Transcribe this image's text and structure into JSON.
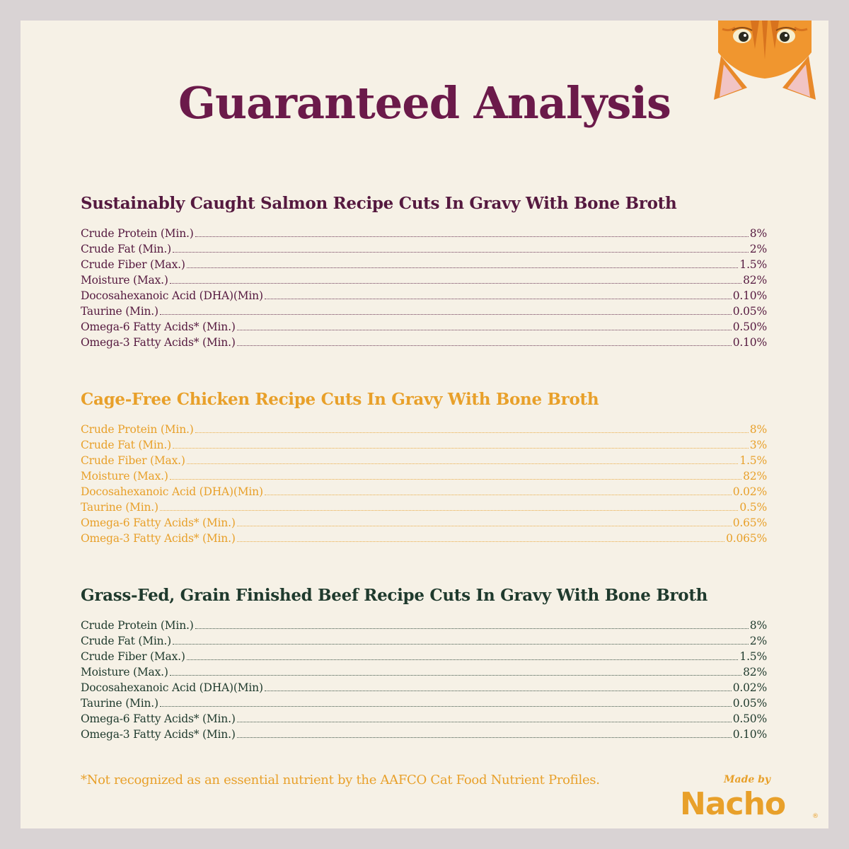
{
  "title": "Guaranteed Analysis",
  "colors": {
    "frame": "#d9d3d4",
    "card": "#f6f1e6",
    "title": "#6b1a4a",
    "salmon_section": "#55193f",
    "chicken_section": "#e8a02a",
    "beef_section": "#1f3a2d",
    "accent": "#e8a02a"
  },
  "sections": [
    {
      "title": "Sustainably Caught Salmon Recipe Cuts In Gravy With Bone Broth",
      "rows": [
        {
          "label": "Crude Protein (Min.)",
          "value": "8%"
        },
        {
          "label": "Crude Fat (Min.)",
          "value": "2%"
        },
        {
          "label": "Crude Fiber (Max.)",
          "value": "1.5%"
        },
        {
          "label": "Moisture (Max.)",
          "value": "82%"
        },
        {
          "label": "Docosahexanoic Acid (DHA)(Min)",
          "value": "0.10%"
        },
        {
          "label": "Taurine (Min.)",
          "value": "0.05%"
        },
        {
          "label": "Omega-6 Fatty Acids* (Min.)",
          "value": "0.50%"
        },
        {
          "label": "Omega-3 Fatty Acids* (Min.)",
          "value": "0.10%"
        }
      ]
    },
    {
      "title": "Cage-Free Chicken Recipe Cuts In Gravy With Bone Broth",
      "rows": [
        {
          "label": "Crude Protein (Min.)",
          "value": "8%"
        },
        {
          "label": "Crude Fat (Min.)",
          "value": "3%"
        },
        {
          "label": "Crude Fiber (Max.)",
          "value": "1.5%"
        },
        {
          "label": "Moisture (Max.)",
          "value": "82%"
        },
        {
          "label": "Docosahexanoic Acid (DHA)(Min)",
          "value": "0.02%"
        },
        {
          "label": "Taurine (Min.)",
          "value": "0.5%"
        },
        {
          "label": "Omega-6 Fatty Acids* (Min.)",
          "value": "0.65%"
        },
        {
          "label": "Omega-3 Fatty Acids* (Min.)",
          "value": "0.065%"
        }
      ]
    },
    {
      "title": "Grass-Fed, Grain Finished Beef Recipe Cuts In Gravy With Bone Broth",
      "rows": [
        {
          "label": "Crude Protein (Min.)",
          "value": "8%"
        },
        {
          "label": "Crude Fat (Min.)",
          "value": "2%"
        },
        {
          "label": "Crude Fiber (Max.)",
          "value": "1.5%"
        },
        {
          "label": "Moisture (Max.)",
          "value": "82%"
        },
        {
          "label": "Docosahexanoic Acid (DHA)(Min)",
          "value": "0.02%"
        },
        {
          "label": "Taurine (Min.)",
          "value": "0.05%"
        },
        {
          "label": "Omega-6 Fatty Acids* (Min.)",
          "value": "0.50%"
        },
        {
          "label": "Omega-3 Fatty Acids* (Min.)",
          "value": "0.10%"
        }
      ]
    }
  ],
  "footnote": "*Not recognized as an essential nutrient by the AAFCO Cat Food Nutrient Profiles.",
  "brand": {
    "made_by": "Made by",
    "name": "Nacho",
    "registered": "®"
  },
  "icons": {
    "cat": "cat-peeking-icon"
  }
}
